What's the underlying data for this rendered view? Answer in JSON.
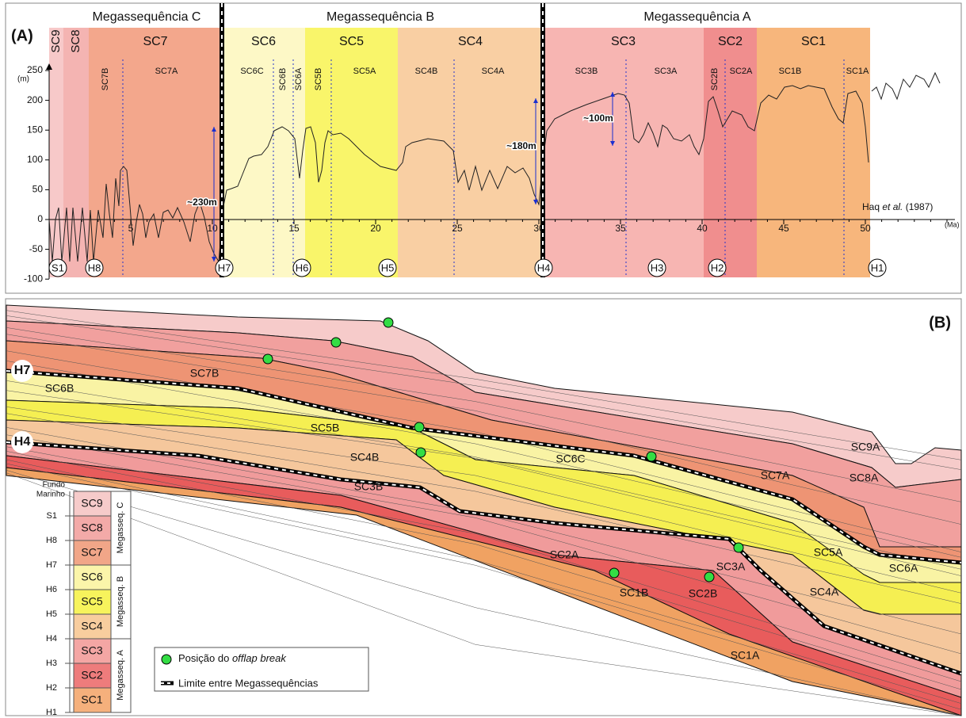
{
  "panel_a": {
    "label": "(A)",
    "megasequences": [
      "Megassequência C",
      "Megassequência B",
      "Megassequência A"
    ],
    "sequences": [
      "SC9",
      "SC8",
      "SC7",
      "SC6",
      "SC5",
      "SC4",
      "SC3",
      "SC2",
      "SC1"
    ],
    "subsequences": [
      "SC7B",
      "SC7A",
      "SC6C",
      "SC6B",
      "SC6A",
      "SC5B",
      "SC5A",
      "SC4B",
      "SC4A",
      "SC3B",
      "SC3A",
      "SC2B",
      "SC2A",
      "SC1B",
      "SC1A"
    ],
    "y_unit": "(m)",
    "x_unit": "(Ma)",
    "yticks": [
      250,
      200,
      150,
      100,
      50,
      0,
      -50,
      -100
    ],
    "xticks": [
      5,
      10,
      15,
      20,
      25,
      30,
      35,
      40,
      45,
      50
    ],
    "horizons": [
      "S1",
      "H8",
      "H7",
      "H6",
      "H5",
      "H4",
      "H3",
      "H2",
      "H1"
    ],
    "annotations": [
      "~230m",
      "~180m",
      "~100m"
    ],
    "reference": [
      "Haq ",
      "et al.",
      " (1987)"
    ]
  },
  "panel_b": {
    "label": "(B)",
    "horizons": [
      "H7",
      "H4"
    ],
    "labels": [
      "SC7B",
      "SC6B",
      "SC5B",
      "SC4B",
      "SC3B",
      "SC6C",
      "SC7A",
      "SC9A",
      "SC8A",
      "SC5A",
      "SC6A",
      "SC2A",
      "SC3A",
      "SC1B",
      "SC2B",
      "SC4A",
      "SC1A"
    ],
    "column": {
      "surfaces": [
        "Fundo",
        "Marinho",
        "S1",
        "H8",
        "H7",
        "H6",
        "H5",
        "H4",
        "H3",
        "H2",
        "H1"
      ],
      "sequences": [
        "SC9",
        "SC8",
        "SC7",
        "SC6",
        "SC5",
        "SC4",
        "SC3",
        "SC2",
        "SC1"
      ],
      "megasequences": [
        "Megasseq. C",
        "Megasseq. B",
        "Megasseq. A"
      ]
    },
    "legend": {
      "offlap": [
        "Posição do ",
        "offlap break"
      ],
      "boundary": "Limite entre Megassequências"
    }
  }
}
